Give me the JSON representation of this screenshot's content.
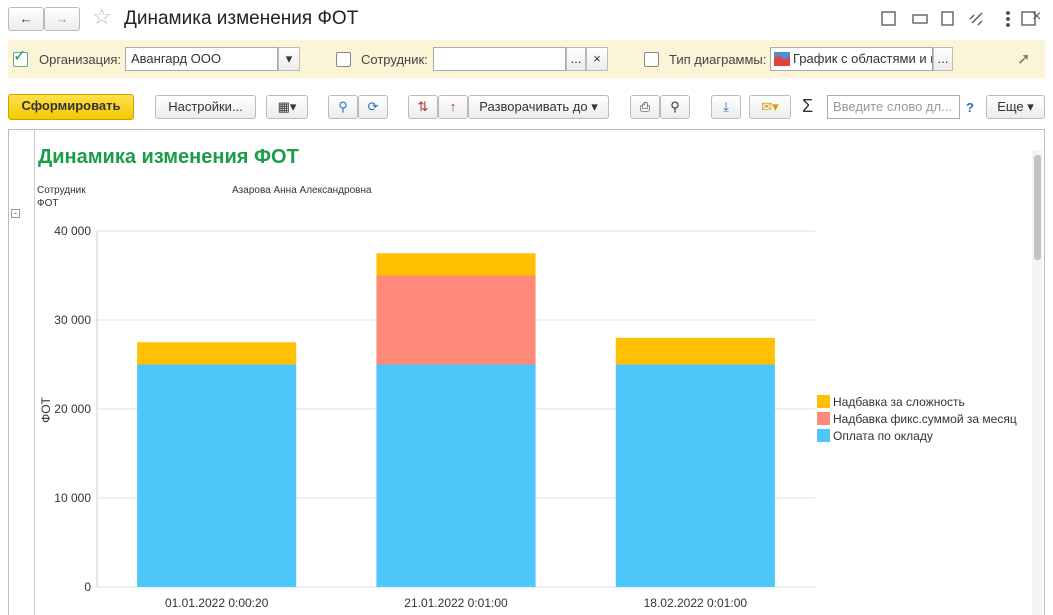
{
  "window": {
    "title": "Динамика изменения ФОТ"
  },
  "filters": {
    "organization_label": "Организация:",
    "organization_value": "Авангард ООО",
    "employee_label": "Сотрудник:",
    "employee_select": "...",
    "employee_clear": "×",
    "chart_type_label": "Тип диаграммы:",
    "chart_type_value": "График с областями и г",
    "chart_type_select": "..."
  },
  "toolbar": {
    "generate": "Сформировать",
    "settings": "Настройки...",
    "expand": "Разворачивать до",
    "search_placeholder": "Введите слово дл...",
    "help": "?",
    "more": "Еще",
    "sum": "Σ"
  },
  "report": {
    "title": "Динамика изменения ФОТ",
    "row_label_1": "Сотрудник",
    "row_label_2": "ФОТ",
    "employee": "Азарова Анна Александровна"
  },
  "chart_data": {
    "type": "stacked_bar",
    "ylabel": "ФОТ",
    "categories": [
      "01.01.2022 0:00:20",
      "21.01.2022 0:01:00",
      "18.02.2022 0:01:00"
    ],
    "series": [
      {
        "name": "Оплата по окладу",
        "color": "#4dc7f9",
        "values": [
          25000,
          25000,
          25000
        ]
      },
      {
        "name": "Надбавка фикс.суммой за месяц",
        "color": "#ff8a7a",
        "values": [
          0,
          10000,
          0
        ]
      },
      {
        "name": "Надбавка за сложность",
        "color": "#ffc000",
        "values": [
          2500,
          2500,
          3000
        ]
      }
    ],
    "ylim": [
      0,
      40000
    ],
    "yticks": [
      0,
      {
        "value": 10000,
        "label": "10 000"
      },
      {
        "value": 20000,
        "label": "20 000"
      },
      {
        "value": 30000,
        "label": "30 000"
      },
      {
        "value": 40000,
        "label": "40 000"
      }
    ],
    "grid": true
  }
}
